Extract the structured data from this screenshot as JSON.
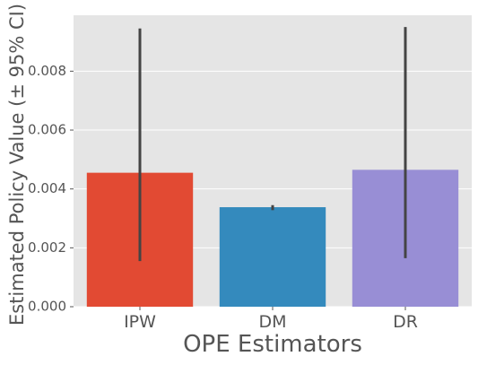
{
  "chart_data": {
    "type": "bar",
    "title": "",
    "xlabel": "OPE Estimators",
    "ylabel": "Estimated Policy Value (± 95% CI)",
    "categories": [
      "IPW",
      "DM",
      "DR"
    ],
    "values": [
      0.00455,
      0.00338,
      0.00465
    ],
    "ci_low": [
      0.00155,
      0.00328,
      0.00165
    ],
    "ci_high": [
      0.00945,
      0.00345,
      0.0095
    ],
    "ylim": [
      0,
      0.0099
    ],
    "yticks": [
      0.0,
      0.002,
      0.004,
      0.006,
      0.008
    ],
    "ytick_labels": [
      "0.000",
      "0.002",
      "0.004",
      "0.006",
      "0.008"
    ],
    "grid": true,
    "style": "ggplot",
    "colors": {
      "IPW": "#E24A33",
      "DM": "#348ABD",
      "DR": "#988ED5",
      "errorbar": "#444444",
      "plot_background": "#E5E5E5",
      "grid": "#FFFFFF",
      "text": "#555555"
    }
  }
}
